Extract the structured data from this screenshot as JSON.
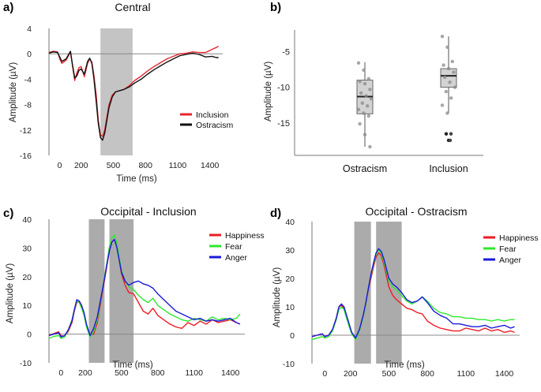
{
  "chart_data": [
    {
      "panel": "a)",
      "type": "line",
      "title": "Central",
      "xlabel": "Time (ms)",
      "ylabel": "Amplitude (µV)",
      "xlim": [
        -100,
        1520
      ],
      "ylim": [
        -16,
        4
      ],
      "x_ticks": [
        0,
        200,
        500,
        800,
        1100,
        1400
      ],
      "x_tick_labels": [
        "0",
        "200",
        "500",
        "800",
        "1100",
        "1400"
      ],
      "y_ticks": [
        4,
        0,
        -4,
        -8,
        -12,
        -16
      ],
      "y_tick_labels": [
        "4",
        "0",
        "-4",
        "-8",
        "-12",
        "-16"
      ],
      "shaded_windows": [
        [
          380,
          680
        ]
      ],
      "legend_position": "lower-right",
      "series": [
        {
          "name": "Inclusion",
          "color": "#e8262d",
          "x": [
            -100,
            -60,
            -20,
            0,
            20,
            60,
            100,
            120,
            140,
            160,
            180,
            200,
            230,
            260,
            280,
            300,
            320,
            340,
            360,
            380,
            400,
            420,
            440,
            460,
            490,
            520,
            560,
            600,
            650,
            700,
            760,
            820,
            880,
            940,
            1000,
            1060,
            1120,
            1180,
            1240,
            1300,
            1360,
            1420,
            1460,
            1480
          ],
          "y": [
            0.2,
            0.4,
            0.3,
            -0.8,
            -1.5,
            -1.0,
            0.3,
            -2.0,
            -4.2,
            -3.0,
            -2.2,
            -2.0,
            -3.6,
            -1.5,
            -0.8,
            -1.3,
            -3.5,
            -6.5,
            -10.5,
            -12.8,
            -13.0,
            -12.0,
            -10.0,
            -8.0,
            -6.5,
            -6.0,
            -5.8,
            -5.6,
            -5.0,
            -4.2,
            -3.5,
            -2.7,
            -2.0,
            -1.4,
            -0.8,
            -0.4,
            0.0,
            0.1,
            0.3,
            0.2,
            0.2,
            0.7,
            1.0,
            1.2
          ]
        },
        {
          "name": "Ostracism",
          "color": "#111111",
          "x": [
            -100,
            -60,
            -20,
            0,
            20,
            60,
            100,
            120,
            140,
            160,
            180,
            200,
            230,
            260,
            280,
            300,
            320,
            340,
            360,
            380,
            400,
            420,
            440,
            460,
            490,
            520,
            560,
            600,
            650,
            700,
            760,
            820,
            880,
            940,
            1000,
            1060,
            1120,
            1180,
            1240,
            1300,
            1360,
            1420,
            1460,
            1480
          ],
          "y": [
            0.1,
            0.3,
            0.2,
            -0.5,
            -1.2,
            -0.8,
            0.4,
            -1.8,
            -3.8,
            -3.5,
            -2.6,
            -2.4,
            -3.2,
            -1.2,
            -0.7,
            -1.5,
            -4.0,
            -7.5,
            -11.0,
            -13.2,
            -13.6,
            -12.5,
            -10.5,
            -8.5,
            -6.8,
            -6.0,
            -5.8,
            -5.6,
            -5.2,
            -4.6,
            -4.0,
            -3.2,
            -2.5,
            -1.9,
            -1.3,
            -0.8,
            -0.3,
            -0.1,
            0.1,
            -0.1,
            -0.5,
            -0.4,
            -0.6,
            -0.6
          ]
        }
      ]
    },
    {
      "panel": "b)",
      "type": "box",
      "xlabel": "",
      "ylabel": "Amplitude (µV)",
      "ylim": [
        -19.5,
        -2
      ],
      "y_ticks": [
        -5,
        -10,
        -15
      ],
      "y_tick_labels": [
        "-5",
        "-10",
        "-15"
      ],
      "categories": [
        "Ostracism",
        "Inclusion"
      ],
      "boxes": [
        {
          "category": "Ostracism",
          "whisker_low": -18.3,
          "q1": -13.7,
          "median": -11.3,
          "q3": -9.0,
          "whisker_high": -6.5,
          "points": [
            -6.6,
            -7.6,
            -8.8,
            -9.2,
            -9.5,
            -10.3,
            -10.8,
            -11.2,
            -11.6,
            -12.2,
            -12.6,
            -13.1,
            -13.6,
            -14.0,
            -15.1,
            -16.6,
            -18.3
          ]
        },
        {
          "category": "Inclusion",
          "whisker_low": -13.6,
          "q1": -10.0,
          "median": -8.4,
          "q3": -7.4,
          "whisker_high": -2.9,
          "points": [
            -2.9,
            -4.4,
            -6.4,
            -6.9,
            -7.4,
            -7.9,
            -8.6,
            -9.3,
            -10.0,
            -10.6,
            -11.5,
            -12.5,
            -13.6
          ],
          "outliers": [
            -16.5,
            -17.4
          ]
        }
      ]
    },
    {
      "panel": "c)",
      "type": "line",
      "title": "Occipital - Inclusion",
      "xlabel": "Time (ms)",
      "ylabel": "Amplitude (µV)",
      "xlim": [
        -100,
        1520
      ],
      "ylim": [
        -10,
        40
      ],
      "x_ticks": [
        0,
        200,
        500,
        800,
        1100,
        1400
      ],
      "x_tick_labels": [
        "0",
        "200",
        "500",
        "800",
        "1100",
        "1400"
      ],
      "y_ticks": [
        40,
        30,
        20,
        10,
        0,
        -10
      ],
      "y_tick_labels": [
        "40",
        "30",
        "20",
        "10",
        "0",
        "-10"
      ],
      "shaded_windows": [
        [
          230,
          360
        ],
        [
          400,
          600
        ]
      ],
      "legend_position": "upper-right",
      "series": [
        {
          "name": "Happiness",
          "color": "#ee1c24",
          "x": [
            -100,
            -60,
            -20,
            0,
            30,
            60,
            90,
            110,
            130,
            150,
            170,
            190,
            210,
            240,
            270,
            300,
            320,
            340,
            360,
            380,
            400,
            420,
            440,
            460,
            480,
            500,
            530,
            560,
            600,
            640,
            680,
            720,
            760,
            800,
            850,
            900,
            950,
            1000,
            1050,
            1100,
            1150,
            1200,
            1250,
            1300,
            1350,
            1400,
            1450,
            1480
          ],
          "y": [
            -0.5,
            0.2,
            0.8,
            -0.5,
            -0.8,
            1.0,
            4.0,
            8.0,
            11.0,
            11.5,
            10.0,
            7.0,
            3.0,
            -0.5,
            0.0,
            4.0,
            9.0,
            14.0,
            19.0,
            24.0,
            29.0,
            32.0,
            33.0,
            31.0,
            26.0,
            21.0,
            17.0,
            14.5,
            14.0,
            11.0,
            8.0,
            7.0,
            9.0,
            6.5,
            5.0,
            3.5,
            2.5,
            2.0,
            4.0,
            3.0,
            4.5,
            3.5,
            5.0,
            4.0,
            4.5,
            5.0,
            4.0,
            3.5
          ]
        },
        {
          "name": "Fear",
          "color": "#2ee82e",
          "x": [
            -100,
            -60,
            -20,
            0,
            30,
            60,
            90,
            110,
            130,
            150,
            170,
            190,
            210,
            240,
            270,
            300,
            320,
            340,
            360,
            380,
            400,
            420,
            440,
            460,
            480,
            500,
            530,
            560,
            600,
            640,
            680,
            720,
            760,
            800,
            850,
            900,
            950,
            1000,
            1050,
            1100,
            1150,
            1200,
            1250,
            1300,
            1350,
            1400,
            1450,
            1480
          ],
          "y": [
            -1.5,
            -0.8,
            -0.5,
            -1.5,
            -1.0,
            1.5,
            5.0,
            8.5,
            11.5,
            11.0,
            9.0,
            6.5,
            2.5,
            -1.0,
            1.0,
            5.0,
            10.0,
            15.0,
            20.0,
            25.0,
            30.5,
            33.5,
            34.5,
            32.0,
            27.0,
            22.0,
            18.5,
            16.5,
            15.5,
            13.5,
            12.0,
            11.0,
            12.5,
            10.0,
            8.5,
            7.0,
            6.0,
            5.0,
            4.5,
            5.5,
            5.0,
            4.5,
            6.0,
            5.0,
            5.5,
            5.0,
            5.5,
            7.0
          ]
        },
        {
          "name": "Anger",
          "color": "#1a1adb",
          "x": [
            -100,
            -60,
            -20,
            0,
            30,
            60,
            90,
            110,
            130,
            150,
            170,
            190,
            210,
            240,
            270,
            300,
            320,
            340,
            360,
            380,
            400,
            420,
            440,
            460,
            480,
            500,
            530,
            560,
            600,
            640,
            680,
            720,
            760,
            800,
            850,
            900,
            950,
            1000,
            1050,
            1100,
            1150,
            1200,
            1250,
            1300,
            1350,
            1400,
            1450,
            1480
          ],
          "y": [
            -0.5,
            0.0,
            0.5,
            -1.0,
            -0.5,
            1.5,
            4.5,
            8.5,
            12.0,
            11.5,
            10.0,
            7.5,
            3.5,
            -0.5,
            2.0,
            6.0,
            10.5,
            15.0,
            19.5,
            24.5,
            29.0,
            32.0,
            33.0,
            30.5,
            26.0,
            21.5,
            18.5,
            17.0,
            18.0,
            18.5,
            17.5,
            17.0,
            16.0,
            14.0,
            12.0,
            10.0,
            8.0,
            7.0,
            6.0,
            5.0,
            5.5,
            4.5,
            5.0,
            4.5,
            5.0,
            5.5,
            4.0,
            3.5
          ]
        }
      ]
    },
    {
      "panel": "d)",
      "type": "line",
      "title": "Occipital - Ostracism",
      "xlabel": "Time (ms)",
      "ylabel": "Amplitude (µV)",
      "xlim": [
        -100,
        1520
      ],
      "ylim": [
        -10,
        40
      ],
      "x_ticks": [
        0,
        200,
        500,
        800,
        1100,
        1400
      ],
      "x_tick_labels": [
        "0",
        "200",
        "500",
        "800",
        "1100",
        "1400"
      ],
      "y_ticks": [
        40,
        30,
        20,
        10,
        0,
        -10
      ],
      "y_tick_labels": [
        "40",
        "30",
        "20",
        "10",
        "0",
        "-10"
      ],
      "shaded_windows": [
        [
          230,
          360
        ],
        [
          400,
          600
        ]
      ],
      "legend_position": "upper-right",
      "series": [
        {
          "name": "Happiness",
          "color": "#ee1c24",
          "x": [
            -100,
            -60,
            -20,
            0,
            30,
            60,
            90,
            110,
            130,
            150,
            170,
            190,
            210,
            240,
            270,
            300,
            320,
            340,
            360,
            380,
            400,
            420,
            440,
            460,
            480,
            500,
            530,
            560,
            600,
            640,
            680,
            720,
            760,
            800,
            850,
            900,
            950,
            1000,
            1050,
            1100,
            1150,
            1200,
            1250,
            1300,
            1350,
            1400,
            1450,
            1480
          ],
          "y": [
            -0.5,
            0.0,
            0.5,
            -0.5,
            0.0,
            2.0,
            6.0,
            10.0,
            10.5,
            9.5,
            6.5,
            3.5,
            1.0,
            -1.0,
            2.0,
            7.0,
            11.0,
            16.0,
            20.0,
            24.0,
            27.5,
            29.0,
            28.0,
            25.0,
            21.0,
            17.0,
            14.0,
            12.5,
            11.0,
            9.5,
            9.0,
            8.0,
            7.5,
            5.0,
            3.5,
            2.5,
            2.0,
            1.5,
            1.5,
            2.5,
            2.0,
            1.5,
            2.5,
            1.5,
            2.0,
            1.0,
            1.5,
            1.0
          ]
        },
        {
          "name": "Fear",
          "color": "#2ee82e",
          "x": [
            -100,
            -60,
            -20,
            0,
            30,
            60,
            90,
            110,
            130,
            150,
            170,
            190,
            210,
            240,
            270,
            300,
            320,
            340,
            360,
            380,
            400,
            420,
            440,
            460,
            480,
            500,
            530,
            560,
            600,
            640,
            680,
            720,
            760,
            800,
            850,
            900,
            950,
            1000,
            1050,
            1100,
            1150,
            1200,
            1250,
            1300,
            1350,
            1400,
            1450,
            1480
          ],
          "y": [
            -1.5,
            -1.0,
            -0.5,
            -1.0,
            -0.5,
            1.5,
            5.5,
            9.0,
            10.0,
            9.0,
            6.0,
            3.0,
            0.5,
            -1.5,
            1.5,
            6.5,
            11.0,
            16.5,
            21.0,
            25.0,
            28.5,
            30.0,
            29.0,
            26.0,
            22.5,
            19.0,
            17.0,
            16.0,
            14.0,
            12.0,
            11.0,
            12.0,
            13.5,
            12.0,
            9.5,
            8.0,
            7.5,
            6.5,
            6.5,
            6.0,
            6.0,
            5.5,
            5.5,
            5.0,
            5.5,
            5.0,
            5.5,
            5.5
          ]
        },
        {
          "name": "Anger",
          "color": "#1a1adb",
          "x": [
            -100,
            -60,
            -20,
            0,
            30,
            60,
            90,
            110,
            130,
            150,
            170,
            190,
            210,
            240,
            270,
            300,
            320,
            340,
            360,
            380,
            400,
            420,
            440,
            460,
            480,
            500,
            530,
            560,
            600,
            640,
            680,
            720,
            760,
            800,
            850,
            900,
            950,
            1000,
            1050,
            1100,
            1150,
            1200,
            1250,
            1300,
            1350,
            1400,
            1450,
            1480
          ],
          "y": [
            -0.5,
            0.0,
            0.5,
            -0.5,
            0.0,
            2.0,
            6.0,
            10.0,
            11.0,
            10.0,
            7.0,
            4.0,
            1.0,
            -1.0,
            2.0,
            7.0,
            11.5,
            16.5,
            21.5,
            25.5,
            29.0,
            30.5,
            29.5,
            27.0,
            23.5,
            20.0,
            18.0,
            17.0,
            15.0,
            12.5,
            11.5,
            12.0,
            13.5,
            11.5,
            8.5,
            7.0,
            6.0,
            4.0,
            4.0,
            3.5,
            3.0,
            3.0,
            3.5,
            2.5,
            3.0,
            3.5,
            2.5,
            3.0
          ]
        }
      ]
    }
  ]
}
